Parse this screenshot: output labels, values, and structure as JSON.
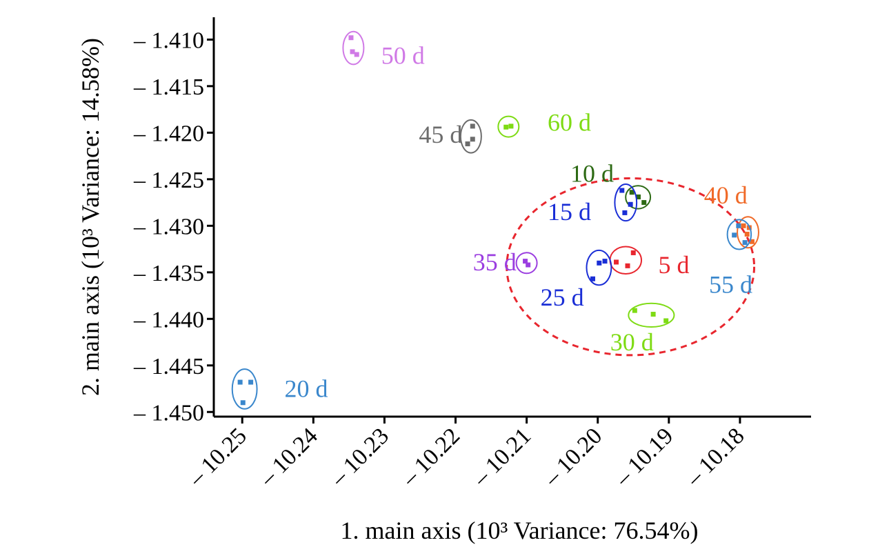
{
  "chart_data": {
    "type": "scatter",
    "title": "",
    "xlabel": "1. main axis (10³ Variance: 76.54%)",
    "ylabel": "2. main axis (10³ Variance: 14.58%)",
    "xlim": [
      -10.254,
      -10.17
    ],
    "ylim": [
      -1.4505,
      -1.4076
    ],
    "x_ticks": [
      -10.25,
      -10.24,
      -10.23,
      -10.22,
      -10.21,
      -10.2,
      -10.19,
      -10.18
    ],
    "x_tick_labels": [
      "– 10.25",
      "– 10.24",
      "– 10.23",
      "– 10.22",
      "– 10.21",
      "– 10.20",
      "– 10.19",
      "– 10.18"
    ],
    "y_ticks": [
      -1.41,
      -1.415,
      -1.42,
      -1.425,
      -1.43,
      -1.435,
      -1.44,
      -1.445,
      -1.45
    ],
    "y_tick_labels": [
      "– 1.410",
      "– 1.415",
      "– 1.420",
      "– 1.425",
      "– 1.430",
      "– 1.435",
      "– 1.440",
      "– 1.445",
      "– 1.450"
    ],
    "grid": false,
    "legend": "none",
    "series": [
      {
        "name": "5 d",
        "color": "#e8262e",
        "x": [
          -10.1974,
          -10.1958,
          -10.195
        ],
        "y": [
          -1.4339,
          -1.4343,
          -1.4329
        ],
        "label_x": -10.1893,
        "label_y": -1.4342
      },
      {
        "name": "10 d",
        "color": "#2d6a14",
        "x": [
          -10.1952,
          -10.1935,
          -10.1943
        ],
        "y": [
          -1.4264,
          -1.4275,
          -1.4269
        ],
        "label_x": -10.2008,
        "label_y": -1.4244
      },
      {
        "name": "15 d",
        "color": "#1a2ed6",
        "x": [
          -10.1966,
          -10.1962,
          -10.1954
        ],
        "y": [
          -1.4262,
          -1.4286,
          -1.4277
        ],
        "label_x": -10.204,
        "label_y": -1.4285
      },
      {
        "name": "20 d",
        "color": "#3a87cc",
        "x": [
          -10.2503,
          -10.2488,
          -10.2499
        ],
        "y": [
          -1.4468,
          -1.4468,
          -1.449
        ],
        "label_x": -10.241,
        "label_y": -1.4475
      },
      {
        "name": "25 d",
        "color": "#1a2ed6",
        "x": [
          -10.2007,
          -10.1998,
          -10.199
        ],
        "y": [
          -1.4357,
          -1.434,
          -1.4338
        ],
        "label_x": -10.205,
        "label_y": -1.4377
      },
      {
        "name": "30 d",
        "color": "#7edb14",
        "x": [
          -10.1948,
          -10.1922,
          -10.1904
        ],
        "y": [
          -1.4391,
          -1.4395,
          -1.4402
        ],
        "label_x": -10.1952,
        "label_y": -1.4425
      },
      {
        "name": "35 d",
        "color": "#9b3ee0",
        "x": [
          -10.2102,
          -10.2098
        ],
        "y": [
          -1.4338,
          -1.4342
        ],
        "label_x": -10.2145,
        "label_y": -1.4339
      },
      {
        "name": "40 d",
        "color": "#f06a28",
        "x": [
          -10.1795,
          -10.1787,
          -10.179,
          -10.1783
        ],
        "y": [
          -1.43,
          -1.4302,
          -1.4309,
          -1.4317
        ],
        "label_x": -10.182,
        "label_y": -1.4267
      },
      {
        "name": "45 d",
        "color": "#6c6c6c",
        "x": [
          -10.2176,
          -10.2176,
          -10.2183
        ],
        "y": [
          -1.4193,
          -1.4207,
          -1.4212
        ],
        "label_x": -10.2221,
        "label_y": -1.4202
      },
      {
        "name": "55 d",
        "color": "#3a87cc",
        "x": [
          -10.1808,
          -10.1802,
          -10.1793
        ],
        "y": [
          -1.431,
          -1.43,
          -1.4318
        ],
        "label_x": -10.1813,
        "label_y": -1.4363
      },
      {
        "name": "60 d",
        "color": "#7edb14",
        "x": [
          -10.2129,
          -10.2122
        ],
        "y": [
          -1.4194,
          -1.4193
        ],
        "label_x": -10.204,
        "label_y": -1.4189
      },
      {
        "name": "50 d",
        "color": "#d07ae6",
        "x": [
          -10.2347,
          -10.2345,
          -10.2339
        ],
        "y": [
          -1.4098,
          -1.4113,
          -1.4116
        ],
        "label_x": -10.2274,
        "label_y": -1.4117
      }
    ],
    "annotations": [
      {
        "type": "dashed-circle",
        "color": "#e8262e",
        "center_x": -10.1954,
        "center_y": -1.4344,
        "radius_x_data": 0.0174,
        "radius_y_data": 0.0095
      }
    ]
  }
}
